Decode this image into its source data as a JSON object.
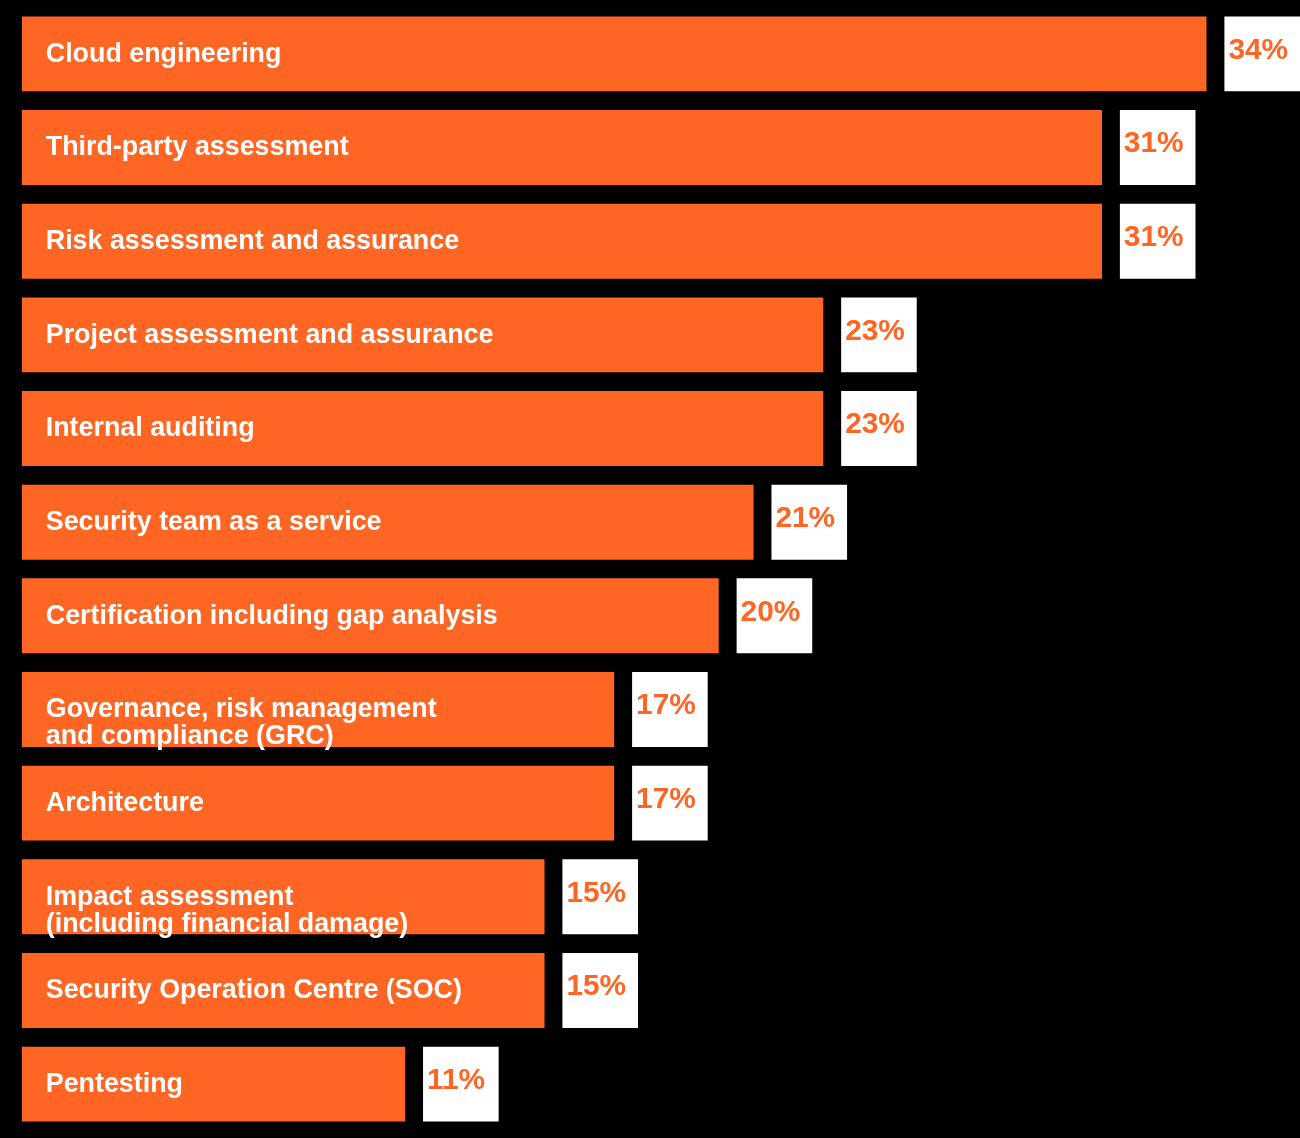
{
  "chart_data": {
    "type": "bar",
    "orientation": "horizontal",
    "categories": [
      "Cloud engineering",
      "Third-party assessment",
      "Risk assessment and assurance",
      "Project assessment and assurance",
      "Internal auditing",
      "Security team as a service",
      "Certification including gap analysis",
      "Governance, risk management\nand compliance (GRC)",
      "Architecture",
      "Impact assessment\n(including financial damage)",
      "Security Operation Centre (SOC)",
      "Pentesting"
    ],
    "values": [
      34,
      31,
      31,
      23,
      23,
      21,
      20,
      17,
      17,
      15,
      15,
      11
    ],
    "value_labels": [
      "34%",
      "31%",
      "31%",
      "23%",
      "23%",
      "21%",
      "20%",
      "17%",
      "17%",
      "15%",
      "15%",
      "11%"
    ],
    "color": "#ff6624"
  }
}
